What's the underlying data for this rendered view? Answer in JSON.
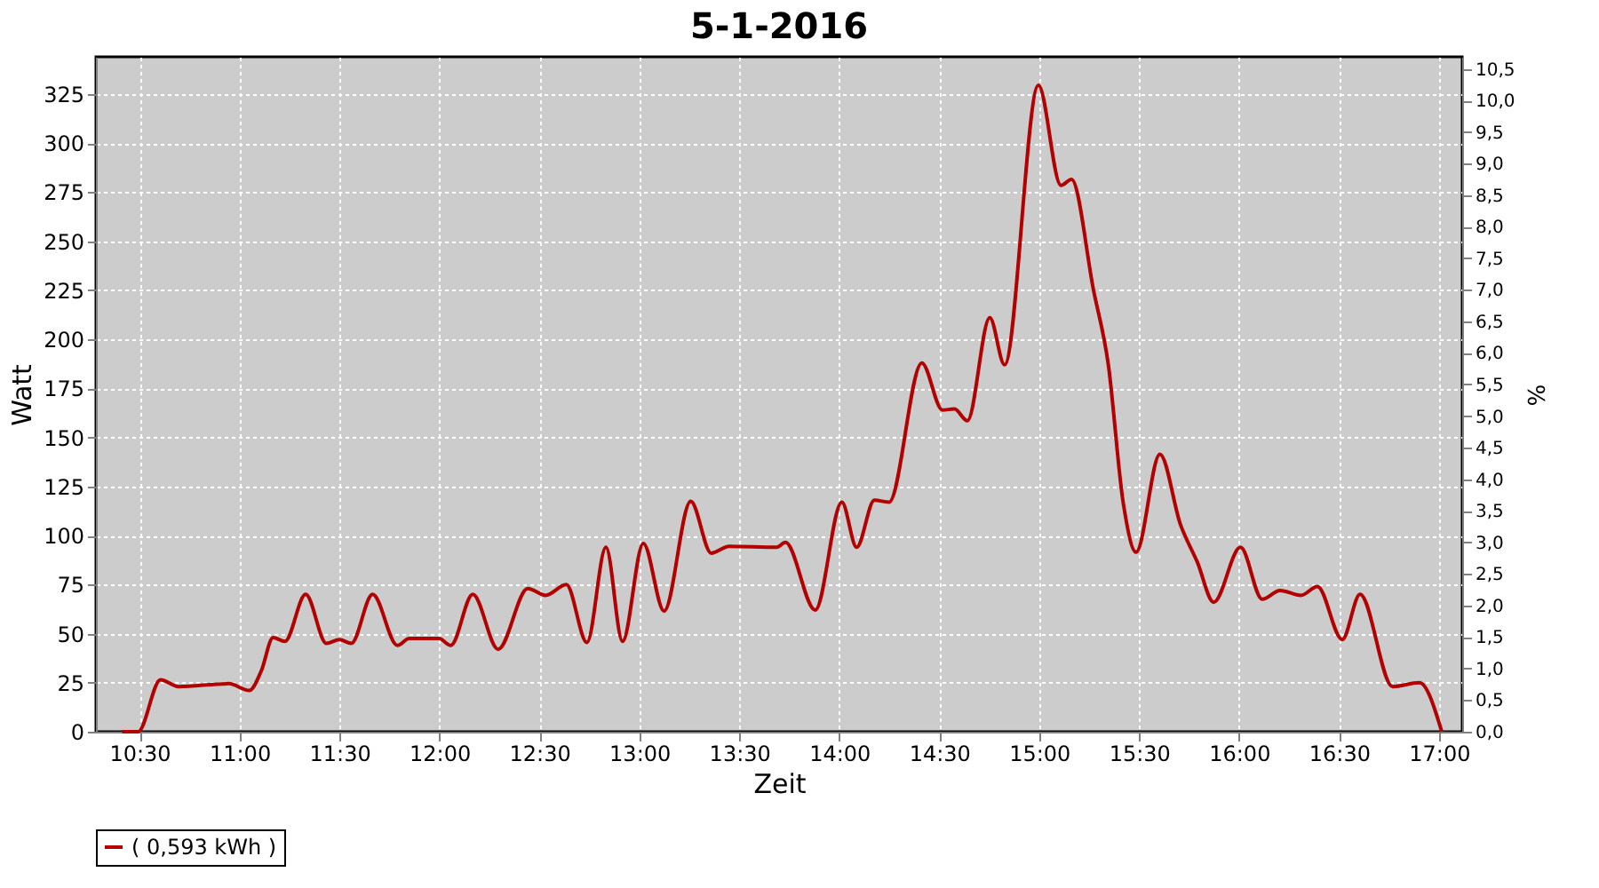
{
  "chart_data": {
    "type": "line",
    "title": "5-1-2016",
    "xlabel": "Zeit",
    "ylabel": "Watt",
    "y2label": "%",
    "x": [
      10.413,
      10.493,
      10.605,
      10.694,
      10.946,
      11.049,
      11.109,
      11.168,
      11.227,
      11.331,
      11.435,
      11.5,
      11.559,
      11.666,
      11.79,
      11.849,
      11.998,
      12.057,
      12.167,
      12.294,
      12.442,
      12.531,
      12.635,
      12.738,
      12.833,
      12.916,
      13.02,
      13.124,
      13.257,
      13.36,
      13.449,
      13.687,
      13.731,
      13.88,
      14.013,
      14.087,
      14.176,
      14.249,
      14.413,
      14.516,
      14.576,
      14.641,
      14.753,
      14.827,
      14.996,
      15.109,
      15.162,
      15.272,
      15.346,
      15.42,
      15.485,
      15.604,
      15.707,
      15.791,
      15.873,
      16.007,
      16.116,
      16.205,
      16.309,
      16.392,
      16.516,
      16.605,
      16.768,
      16.902,
      17.014
    ],
    "series": [
      {
        "name": "( 0,593 kWh )",
        "color": "#b30000",
        "values": [
          0,
          0,
          26.5,
          23,
          24.5,
          21,
          31,
          48,
          46,
          70,
          45,
          47,
          45,
          70,
          44,
          47.5,
          47.5,
          44,
          70,
          42,
          73,
          69.5,
          75,
          45.5,
          94,
          46,
          96,
          61.5,
          117.5,
          91,
          94.5,
          94,
          96.5,
          62,
          117,
          94,
          118,
          117,
          188,
          164,
          164.5,
          158.5,
          211,
          187,
          329.5,
          278.5,
          281.5,
          225,
          187,
          117,
          91.5,
          141.5,
          105.5,
          86.5,
          66,
          94,
          67.5,
          72,
          69.5,
          74,
          47,
          70,
          23,
          25,
          0
        ]
      }
    ],
    "xlim": [
      10.282,
      17.116
    ],
    "xticks": [
      {
        "value": 10.5,
        "label": "10:30"
      },
      {
        "value": 11,
        "label": "11:00"
      },
      {
        "value": 11.5,
        "label": "11:30"
      },
      {
        "value": 12,
        "label": "12:00"
      },
      {
        "value": 12.5,
        "label": "12:30"
      },
      {
        "value": 13,
        "label": "13:00"
      },
      {
        "value": 13.5,
        "label": "13:30"
      },
      {
        "value": 14,
        "label": "14:00"
      },
      {
        "value": 14.5,
        "label": "14:30"
      },
      {
        "value": 15,
        "label": "15:00"
      },
      {
        "value": 15.5,
        "label": "15:30"
      },
      {
        "value": 16,
        "label": "16:00"
      },
      {
        "value": 16.5,
        "label": "16:30"
      },
      {
        "value": 17,
        "label": "17:00"
      }
    ],
    "ylim": [
      0,
      344
    ],
    "yticks": [
      0,
      25,
      50,
      75,
      100,
      125,
      150,
      175,
      200,
      225,
      250,
      275,
      300,
      325
    ],
    "y2lim": [
      0,
      10.69
    ],
    "y2ticks": [
      {
        "value": 0,
        "label": "0,0"
      },
      {
        "value": 0.5,
        "label": "0,5"
      },
      {
        "value": 1,
        "label": "1,0"
      },
      {
        "value": 1.5,
        "label": "1,5"
      },
      {
        "value": 2,
        "label": "2,0"
      },
      {
        "value": 2.5,
        "label": "2,5"
      },
      {
        "value": 3,
        "label": "3,0"
      },
      {
        "value": 3.5,
        "label": "3,5"
      },
      {
        "value": 4,
        "label": "4,0"
      },
      {
        "value": 4.5,
        "label": "4,5"
      },
      {
        "value": 5,
        "label": "5,0"
      },
      {
        "value": 5.5,
        "label": "5,5"
      },
      {
        "value": 6,
        "label": "6,0"
      },
      {
        "value": 6.5,
        "label": "6,5"
      },
      {
        "value": 7,
        "label": "7,0"
      },
      {
        "value": 7.5,
        "label": "7,5"
      },
      {
        "value": 8,
        "label": "8,0"
      },
      {
        "value": 8.5,
        "label": "8,5"
      },
      {
        "value": 9,
        "label": "9,0"
      },
      {
        "value": 9.5,
        "label": "9,5"
      },
      {
        "value": 10,
        "label": "10,0"
      },
      {
        "value": 10.5,
        "label": "10,5"
      }
    ],
    "grid": true,
    "legend": "bottom",
    "marker": "none",
    "line_style": "solid"
  }
}
